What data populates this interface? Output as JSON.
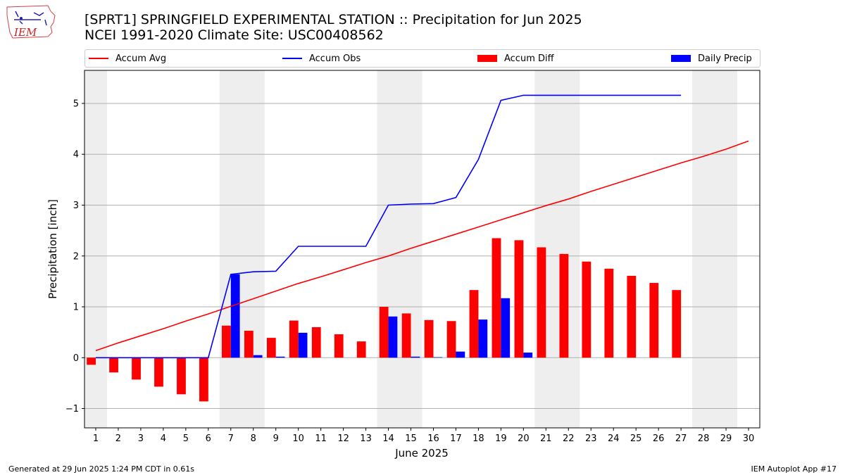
{
  "header": {
    "title_line1": "[SPRT1] SPRINGFIELD EXPERIMENTAL STATION :: Precipitation for Jun 2025",
    "title_line2": "NCEI 1991-2020 Climate Site: USC00408562",
    "logo_text": "IEM"
  },
  "legend": {
    "items": [
      {
        "label": "Accum Avg",
        "color": "#ff0000",
        "kind": "line"
      },
      {
        "label": "Accum Obs",
        "color": "#0000ff",
        "kind": "line"
      },
      {
        "label": "Accum Diff",
        "color": "#ff0000",
        "kind": "bar"
      },
      {
        "label": "Daily Precip",
        "color": "#0000ff",
        "kind": "bar"
      }
    ]
  },
  "footer": {
    "left": "Generated at 29 Jun 2025 1:24 PM CDT in 0.61s",
    "right": "IEM Autoplot App #17"
  },
  "chart_data": {
    "type": "bar",
    "xlabel": "June 2025",
    "ylabel": "Precipitation [inch]",
    "x": [
      1,
      2,
      3,
      4,
      5,
      6,
      7,
      8,
      9,
      10,
      11,
      12,
      13,
      14,
      15,
      16,
      17,
      18,
      19,
      20,
      21,
      22,
      23,
      24,
      25,
      26,
      27,
      28,
      29,
      30
    ],
    "xlim": [
      0.5,
      30.5
    ],
    "ylim": [
      -1.38,
      5.65
    ],
    "yticks": [
      -1,
      0,
      1,
      2,
      3,
      4,
      5
    ],
    "ytick_labels": [
      "−1",
      "0",
      "1",
      "2",
      "3",
      "4",
      "5"
    ],
    "grid": true,
    "weekend_shading": [
      [
        0.5,
        1.5
      ],
      [
        6.5,
        8.5
      ],
      [
        13.5,
        15.5
      ],
      [
        20.5,
        22.5
      ],
      [
        27.5,
        29.5
      ]
    ],
    "shade_color": "#eeeeee",
    "series": [
      {
        "name": "Accum Avg",
        "kind": "line",
        "color": "#ff0000",
        "x": [
          1,
          2,
          3,
          4,
          5,
          6,
          7,
          8,
          9,
          10,
          11,
          12,
          13,
          14,
          15,
          16,
          17,
          18,
          19,
          20,
          21,
          22,
          23,
          24,
          25,
          26,
          27,
          28,
          29,
          30
        ],
        "values": [
          0.14,
          0.29,
          0.43,
          0.57,
          0.72,
          0.86,
          1.01,
          1.16,
          1.31,
          1.46,
          1.59,
          1.73,
          1.87,
          2.0,
          2.15,
          2.29,
          2.43,
          2.57,
          2.71,
          2.85,
          2.99,
          3.12,
          3.27,
          3.41,
          3.55,
          3.69,
          3.83,
          3.96,
          4.1,
          4.26
        ]
      },
      {
        "name": "Accum Obs",
        "kind": "line",
        "color": "#0000ff",
        "x": [
          1,
          2,
          3,
          4,
          5,
          6,
          7,
          8,
          9,
          10,
          11,
          12,
          13,
          14,
          15,
          16,
          17,
          18,
          19,
          20,
          21,
          22,
          23,
          24,
          25,
          26,
          27
        ],
        "values": [
          0,
          0,
          0,
          0,
          0,
          0,
          1.64,
          1.69,
          1.7,
          2.19,
          2.19,
          2.19,
          2.19,
          3.0,
          3.02,
          3.03,
          3.15,
          3.9,
          5.06,
          5.16,
          5.16,
          5.16,
          5.16,
          5.16,
          5.16,
          5.16,
          5.16
        ]
      },
      {
        "name": "Accum Diff",
        "kind": "bar",
        "color": "#ff0000",
        "x": [
          1,
          2,
          3,
          4,
          5,
          6,
          7,
          8,
          9,
          10,
          11,
          12,
          13,
          14,
          15,
          16,
          17,
          18,
          19,
          20,
          21,
          22,
          23,
          24,
          25,
          26,
          27
        ],
        "values": [
          -0.14,
          -0.29,
          -0.43,
          -0.57,
          -0.72,
          -0.86,
          0.63,
          0.53,
          0.39,
          0.73,
          0.6,
          0.46,
          0.32,
          1.0,
          0.87,
          0.74,
          0.72,
          1.33,
          2.35,
          2.31,
          2.17,
          2.04,
          1.89,
          1.75,
          1.61,
          1.47,
          1.33
        ]
      },
      {
        "name": "Daily Precip",
        "kind": "bar",
        "color": "#0000ff",
        "x": [
          1,
          2,
          3,
          4,
          5,
          6,
          7,
          8,
          9,
          10,
          11,
          12,
          13,
          14,
          15,
          16,
          17,
          18,
          19,
          20,
          21,
          22,
          23,
          24,
          25,
          26,
          27
        ],
        "values": [
          0,
          0,
          0,
          0,
          0,
          0,
          1.64,
          0.05,
          0.02,
          0.49,
          0,
          0,
          0,
          0.81,
          0.02,
          0.01,
          0.12,
          0.75,
          1.17,
          0.1,
          0,
          0,
          0,
          0,
          0,
          0,
          0
        ]
      }
    ]
  }
}
